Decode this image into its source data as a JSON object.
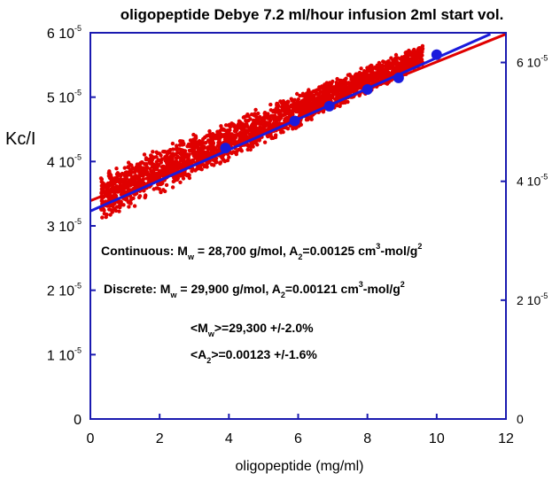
{
  "chart_data": {
    "type": "scatter",
    "title": "oligopeptide Debye 7.2 ml/hour infusion 2ml start vol.",
    "xlabel": "oligopeptide (mg/ml)",
    "ylabel": "Kc/I",
    "xlim": [
      0,
      12
    ],
    "ylim": [
      0,
      6e-05
    ],
    "x_ticks": [
      "0",
      "2",
      "4",
      "6",
      "8",
      "10",
      "12"
    ],
    "y_ticks_left": [
      {
        "value": 0,
        "mant": "0",
        "exp": ""
      },
      {
        "value": 1e-05,
        "mant": "1 10",
        "exp": "-5"
      },
      {
        "value": 2e-05,
        "mant": "2 10",
        "exp": "-5"
      },
      {
        "value": 3e-05,
        "mant": "3 10",
        "exp": "-5"
      },
      {
        "value": 4e-05,
        "mant": "4 10",
        "exp": "-5"
      },
      {
        "value": 5e-05,
        "mant": "5 10",
        "exp": "-5"
      },
      {
        "value": 6e-05,
        "mant": "6 10",
        "exp": "-5"
      }
    ],
    "right_axis": {
      "ylim": [
        0,
        6.5e-05
      ],
      "ticks": [
        {
          "value": 0,
          "mant": "0",
          "exp": ""
        },
        {
          "value": 2e-05,
          "mant": "2 10",
          "exp": "-5"
        },
        {
          "value": 4e-05,
          "mant": "4 10",
          "exp": "-5"
        },
        {
          "value": 6e-05,
          "mant": "6 10",
          "exp": "-5"
        }
      ]
    },
    "series": [
      {
        "kind": "continuous-data",
        "color": "#e00000",
        "x_range": [
          0.3,
          9.6
        ],
        "y_at_start": 3.45e-05,
        "y_at_end": 5.65e-05
      },
      {
        "name": "Discrete",
        "kind": "points",
        "color": "#1a1adc",
        "points": [
          {
            "x": 3.9,
            "y": 4.21e-05
          },
          {
            "x": 5.9,
            "y": 4.63e-05
          },
          {
            "x": 6.9,
            "y": 4.86e-05
          },
          {
            "x": 8.0,
            "y": 5.12e-05
          },
          {
            "x": 8.9,
            "y": 5.3e-05
          },
          {
            "x": 10.0,
            "y": 5.66e-05
          }
        ]
      },
      {
        "kind": "fit-line",
        "color": "#e00000",
        "points": [
          {
            "x": 0,
            "y": 3.39e-05
          },
          {
            "x": 12,
            "y": 5.98e-05
          }
        ]
      },
      {
        "kind": "fit-line",
        "color": "#1a1adc",
        "points": [
          {
            "x": 0,
            "y": 3.23e-05
          },
          {
            "x": 11.55,
            "y": 5.98e-05
          }
        ]
      }
    ],
    "grid": false,
    "annotations": {
      "continuous": {
        "prefix": "Continuous:  M",
        "msub": "w",
        "mid": " = 28,700 g/mol, A",
        "asub": "2",
        "val": "=0.00125 cm",
        "sup1": "3",
        "unit": "-mol/g",
        "sup2": "2"
      },
      "discrete": {
        "prefix": "Discrete:  M",
        "msub": "w",
        "mid": " = 29,900 g/mol, A",
        "asub": "2",
        "val": "=0.00121 cm",
        "sup1": "3",
        "unit": "-mol/g",
        "sup2": "2"
      },
      "avg_m": {
        "open": "<M",
        "sub": "w",
        "rest": ">=29,300 +/-2.0%"
      },
      "avg_a": {
        "open": "<A",
        "sub": "2",
        "rest": ">=0.00123 +/-1.6%"
      }
    }
  }
}
